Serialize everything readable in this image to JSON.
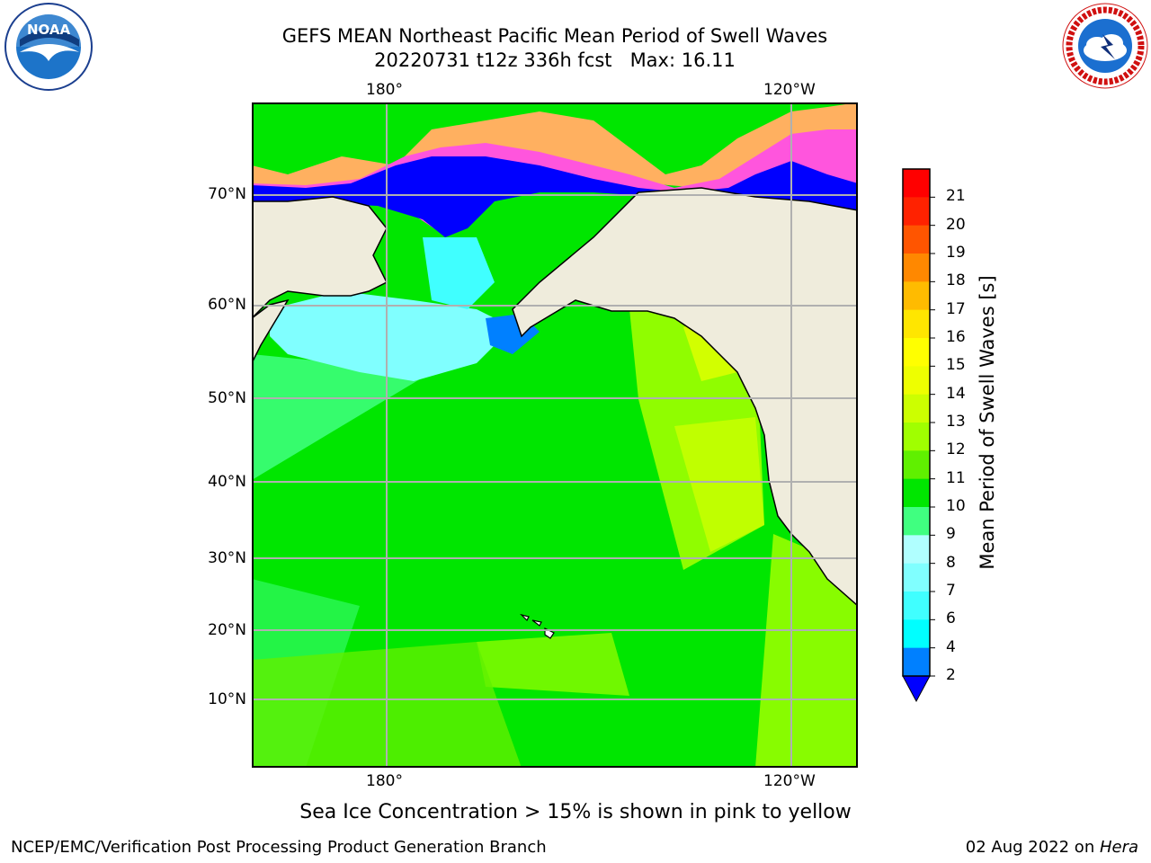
{
  "header": {
    "title_line1": "GEFS MEAN Northeast Pacific Mean Period of Swell Waves",
    "title_line2": "20220731 t12z 336h fcst   Max: 16.11"
  },
  "logos": {
    "left": "noaa-logo",
    "right": "national-weather-service-logo",
    "noaa_text": "NOAA",
    "nws_text": "NATIONAL WEATHER SERVICE"
  },
  "map": {
    "lon_labels_top": [
      "180°",
      "120°W"
    ],
    "lon_labels_bottom": [
      "180°",
      "120°W"
    ],
    "lat_labels": [
      "70°N",
      "60°N",
      "50°N",
      "40°N",
      "30°N",
      "20°N",
      "10°N"
    ],
    "colors": {
      "land": "#efecdc",
      "ocean_green": "#00e600",
      "ice_blue": "#0000ff",
      "ice_pink": "#ff55dd",
      "ice_orange": "#ffb060",
      "grid": "#b0b0b0"
    }
  },
  "colorbar": {
    "label": "Mean Period of Swell Waves [s]",
    "ticks": [
      "2",
      "4",
      "6",
      "7",
      "8",
      "9",
      "10",
      "11",
      "12",
      "13",
      "14",
      "15",
      "16",
      "17",
      "18",
      "19",
      "20",
      "21"
    ],
    "extend_color": "#0000ff",
    "bands": [
      "#0080ff",
      "#00ffff",
      "#40ffff",
      "#80ffff",
      "#b0ffff",
      "#40ff80",
      "#00e600",
      "#60f000",
      "#a0ff00",
      "#ccff00",
      "#eeff00",
      "#ffff00",
      "#ffe600",
      "#ffbb00",
      "#ff8800",
      "#ff5500",
      "#ff2200",
      "#ff0000"
    ]
  },
  "footer": {
    "sea_ice_note": "Sea Ice Concentration > 15% is shown in pink to yellow",
    "producer": "NCEP/EMC/Verification Post Processing Product Generation Branch",
    "date_prefix": "02 Aug 2022 on ",
    "host": "Hera"
  }
}
